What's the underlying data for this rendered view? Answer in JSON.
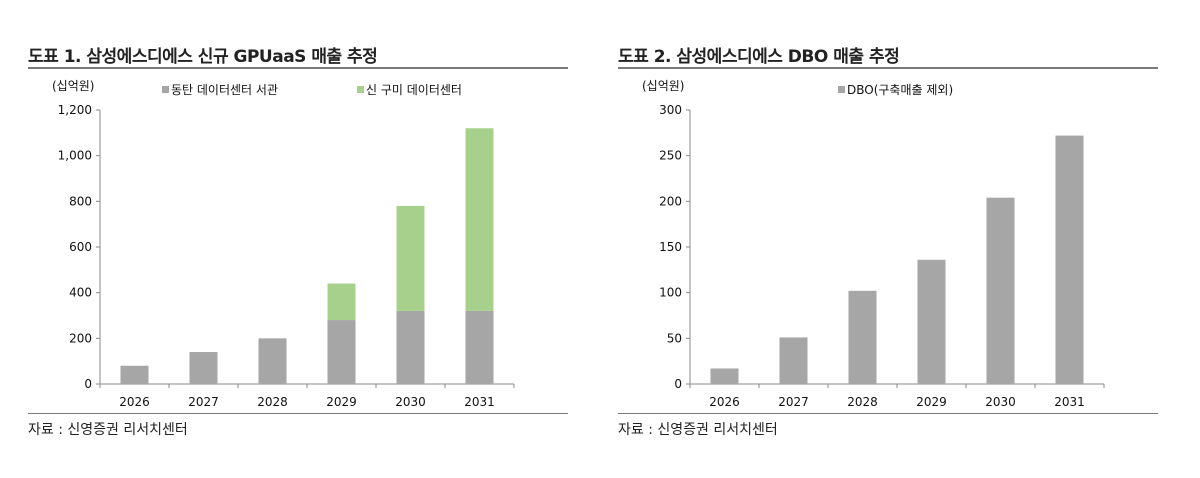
{
  "chart_data": [
    {
      "type": "bar",
      "stacked": true,
      "title": "도표 1. 삼성에스디에스 신규 GPUaaS 매출 추정",
      "unit_label": "(십억원)",
      "categories": [
        "2026",
        "2027",
        "2028",
        "2029",
        "2030",
        "2031"
      ],
      "series": [
        {
          "name": "동탄 데이터센터 서관",
          "color": "#a6a6a6",
          "values": [
            80,
            140,
            200,
            280,
            320,
            320
          ]
        },
        {
          "name": "신 구미 데이터센터",
          "color": "#a8d08d",
          "values": [
            0,
            0,
            0,
            160,
            460,
            800
          ]
        }
      ],
      "ylim": [
        0,
        1200
      ],
      "yticks": [
        "0",
        "200",
        "400",
        "600",
        "800",
        "1,000",
        "1,200"
      ],
      "ytick_values": [
        0,
        200,
        400,
        600,
        800,
        1000,
        1200
      ],
      "grid": false,
      "legend_position": "top",
      "source": "자료 : 신영증권 리서치센터"
    },
    {
      "type": "bar",
      "title": "도표 2. 삼성에스디에스 DBO 매출 추정",
      "unit_label": "(십억원)",
      "categories": [
        "2026",
        "2027",
        "2028",
        "2029",
        "2030",
        "2031"
      ],
      "series": [
        {
          "name": "DBO(구축매출 제외)",
          "color": "#a6a6a6",
          "values": [
            17,
            51,
            102,
            136,
            204,
            272
          ]
        }
      ],
      "ylim": [
        0,
        300
      ],
      "yticks": [
        "0",
        "50",
        "100",
        "150",
        "200",
        "250",
        "300"
      ],
      "ytick_values": [
        0,
        50,
        100,
        150,
        200,
        250,
        300
      ],
      "grid": false,
      "legend_position": "top",
      "source": "자료 : 신영증권 리서치센터"
    }
  ]
}
